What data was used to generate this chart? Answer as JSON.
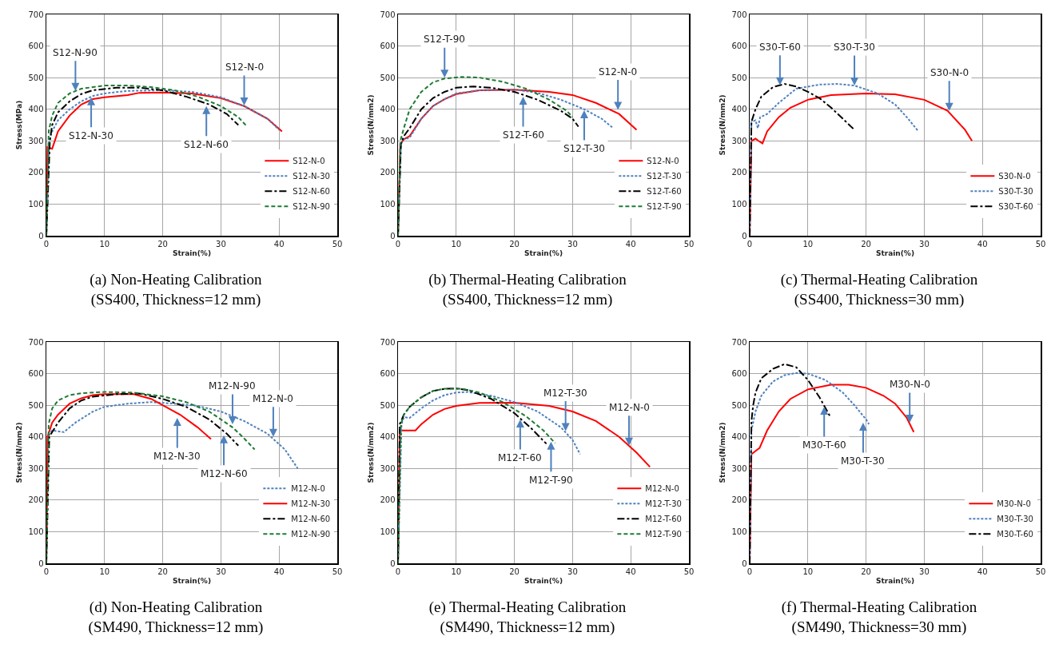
{
  "chart_data": [
    {
      "type": "line",
      "title": "(a)  Non-Heating Calibration\n(SS400,  Thickness=12  mm)",
      "xlabel": "Strain(%)",
      "ylabel": "Stress(MPa)",
      "xlim": [
        0,
        50
      ],
      "xticks": [
        0,
        10,
        20,
        30,
        40,
        50
      ],
      "ylim": [
        0,
        700
      ],
      "yticks": [
        0,
        100,
        200,
        300,
        400,
        500,
        600,
        700
      ],
      "grid": true,
      "legend": "bottom right",
      "series": [
        {
          "name": "S12-N-0",
          "color": "#ff0000",
          "line_style": "solid",
          "x": [
            0,
            0.2,
            1,
            2,
            4,
            6,
            8,
            10,
            14,
            16,
            20,
            25,
            30,
            34,
            38,
            40.5
          ],
          "values": [
            0,
            280,
            275,
            330,
            380,
            415,
            432,
            438,
            445,
            452,
            453,
            450,
            435,
            410,
            370,
            330
          ]
        },
        {
          "name": "S12-N-30",
          "color": "#4f81bd",
          "line_style": "dotted",
          "x": [
            0,
            0.5,
            1,
            2,
            4,
            6,
            8,
            10,
            14,
            20,
            25,
            30,
            34,
            38,
            40
          ],
          "values": [
            0,
            300,
            330,
            365,
            400,
            425,
            442,
            450,
            458,
            460,
            455,
            438,
            410,
            370,
            335
          ]
        },
        {
          "name": "S12-N-60",
          "color": "#000000",
          "line_style": "dashdot",
          "x": [
            0,
            0.6,
            1,
            2,
            4,
            6,
            8,
            12,
            16,
            20,
            24,
            28,
            31,
            33
          ],
          "values": [
            0,
            300,
            350,
            390,
            425,
            448,
            460,
            468,
            468,
            460,
            440,
            415,
            385,
            350
          ]
        },
        {
          "name": "S12-N-90",
          "color": "#1e7b34",
          "line_style": "dashed",
          "x": [
            0,
            0.4,
            1,
            2,
            4,
            6,
            10,
            14,
            18,
            22,
            26,
            30,
            33,
            34.5
          ],
          "values": [
            0,
            330,
            380,
            420,
            450,
            465,
            475,
            475,
            470,
            460,
            440,
            410,
            375,
            345
          ]
        }
      ],
      "annotations": [
        {
          "text": "S12-N-90",
          "x": 5,
          "y": 458
        },
        {
          "text": "S12-N-30",
          "x": 7.7,
          "y": 438
        },
        {
          "text": "S12-N-60",
          "x": 27.5,
          "y": 410
        },
        {
          "text": "S12-N-0",
          "x": 34,
          "y": 412
        }
      ]
    },
    {
      "type": "line",
      "title": "(b)  Thermal-Heating Calibration\n(SS400,  Thickness=12  mm)",
      "xlabel": "Strain(%)",
      "ylabel": "Stress(N/mm2)",
      "xlim": [
        0,
        50
      ],
      "xticks": [
        0,
        10,
        20,
        30,
        40,
        50
      ],
      "ylim": [
        0,
        700
      ],
      "yticks": [
        0,
        100,
        200,
        300,
        400,
        500,
        600,
        700
      ],
      "grid": true,
      "legend": "bottom right",
      "series": [
        {
          "name": "S12-N-0",
          "color": "#ff0000",
          "line_style": "solid",
          "x": [
            0,
            0.4,
            1,
            2,
            4,
            6,
            8,
            10,
            14,
            20,
            26,
            30,
            34,
            38,
            41
          ],
          "values": [
            0,
            290,
            305,
            315,
            370,
            410,
            432,
            448,
            460,
            462,
            455,
            445,
            420,
            385,
            335
          ]
        },
        {
          "name": "S12-T-30",
          "color": "#4f81bd",
          "line_style": "dotted",
          "x": [
            0,
            0.5,
            1,
            2,
            4,
            6,
            8,
            10,
            14,
            20,
            24,
            28,
            32,
            35,
            37
          ],
          "values": [
            0,
            290,
            305,
            310,
            370,
            410,
            432,
            450,
            460,
            462,
            452,
            430,
            400,
            370,
            340
          ]
        },
        {
          "name": "S12-T-60",
          "color": "#000000",
          "line_style": "dashdot",
          "x": [
            0,
            0.5,
            1,
            2,
            4,
            6,
            8,
            10,
            13,
            16,
            20,
            24,
            28,
            30,
            31
          ],
          "values": [
            0,
            290,
            315,
            340,
            400,
            435,
            455,
            468,
            472,
            468,
            455,
            430,
            395,
            370,
            345
          ]
        },
        {
          "name": "S12-T-90",
          "color": "#1e7b34",
          "line_style": "dashed",
          "x": [
            0,
            0.4,
            1,
            2,
            4,
            6,
            8,
            11,
            14,
            18,
            22,
            26,
            29,
            30
          ],
          "values": [
            0,
            300,
            340,
            400,
            455,
            485,
            497,
            502,
            500,
            487,
            465,
            430,
            395,
            375
          ]
        }
      ],
      "annotations": [
        {
          "text": "S12-T-90",
          "x": 8,
          "y": 500
        },
        {
          "text": "S12-N-0",
          "x": 37.8,
          "y": 398
        },
        {
          "text": "S12-T-60",
          "x": 21.5,
          "y": 440
        },
        {
          "text": "S12-T-30",
          "x": 32,
          "y": 397
        }
      ]
    },
    {
      "type": "line",
      "title": "(c)  Thermal-Heating Calibration\n(SS400,  Thickness=30  mm)",
      "xlabel": "Strain(%)",
      "ylabel": "Stress(N/mm2)",
      "xlim": [
        0,
        50
      ],
      "xticks": [
        0,
        10,
        20,
        30,
        40,
        50
      ],
      "ylim": [
        0,
        700
      ],
      "yticks": [
        0,
        100,
        200,
        300,
        400,
        500,
        600,
        700
      ],
      "grid": true,
      "legend": "bottom right",
      "series": [
        {
          "name": "S30-N-0",
          "color": "#ff0000",
          "line_style": "solid",
          "x": [
            0,
            0.3,
            1,
            1.5,
            2.2,
            3,
            5,
            7,
            10,
            14,
            20,
            25,
            30,
            34,
            37,
            38.2
          ],
          "values": [
            0,
            300,
            307,
            300,
            292,
            330,
            375,
            405,
            430,
            445,
            450,
            447,
            430,
            395,
            335,
            300
          ]
        },
        {
          "name": "S30-T-30",
          "color": "#4f81bd",
          "line_style": "dotted",
          "x": [
            0,
            0.3,
            1,
            1.4,
            1.8,
            3,
            5,
            8,
            12,
            15,
            18,
            22,
            25,
            27,
            29
          ],
          "values": [
            0,
            360,
            365,
            340,
            375,
            385,
            420,
            465,
            478,
            480,
            475,
            450,
            415,
            375,
            330
          ]
        },
        {
          "name": "S30-T-60",
          "color": "#000000",
          "line_style": "dashdot",
          "x": [
            0,
            0.3,
            1,
            2,
            4,
            6,
            8,
            10,
            12,
            14,
            16,
            18
          ],
          "values": [
            0,
            360,
            400,
            440,
            470,
            480,
            472,
            455,
            435,
            405,
            370,
            335
          ]
        }
      ],
      "annotations": [
        {
          "text": "S30-T-60",
          "x": 5.2,
          "y": 476
        },
        {
          "text": "S30-T-30",
          "x": 18,
          "y": 475
        },
        {
          "text": "S30-N-0",
          "x": 34.3,
          "y": 395
        }
      ]
    },
    {
      "type": "line",
      "title": "(d)  Non-Heating Calibration\n(SM490,  Thickness=12  mm)",
      "xlabel": "Strain(%)",
      "ylabel": "Stress(N/mm2)",
      "xlim": [
        0,
        50
      ],
      "xticks": [
        0,
        10,
        20,
        30,
        40,
        50
      ],
      "ylim": [
        0,
        700
      ],
      "yticks": [
        0,
        100,
        200,
        300,
        400,
        500,
        600,
        700
      ],
      "grid": true,
      "legend": "bottom right",
      "series": [
        {
          "name": "M12-N-0",
          "color": "#4f81bd",
          "line_style": "dotted",
          "x": [
            0,
            0.3,
            1,
            3,
            5,
            8,
            10,
            14,
            18,
            22,
            26,
            30,
            34,
            38,
            41,
            43.2
          ],
          "values": [
            0,
            400,
            420,
            415,
            445,
            480,
            495,
            505,
            510,
            505,
            498,
            480,
            450,
            410,
            360,
            300
          ]
        },
        {
          "name": "M12-N-30",
          "color": "#ff0000",
          "line_style": "solid",
          "x": [
            0,
            0.2,
            1,
            2,
            4,
            6,
            8,
            10,
            15,
            18,
            20,
            23,
            26,
            28.3
          ],
          "values": [
            0,
            400,
            445,
            470,
            505,
            522,
            532,
            535,
            535,
            520,
            500,
            470,
            430,
            393
          ]
        },
        {
          "name": "M12-N-60",
          "color": "#000000",
          "line_style": "dashdot",
          "x": [
            0,
            0.5,
            1,
            2,
            4,
            6,
            8,
            12,
            16,
            20,
            24,
            28,
            31,
            33
          ],
          "values": [
            0,
            400,
            415,
            445,
            490,
            515,
            527,
            535,
            537,
            520,
            495,
            455,
            410,
            372
          ]
        },
        {
          "name": "M12-N-90",
          "color": "#1e7b34",
          "line_style": "dashed",
          "x": [
            0,
            0.4,
            1,
            2,
            4,
            6,
            10,
            15,
            20,
            24,
            28,
            32,
            34,
            35.8
          ],
          "values": [
            0,
            440,
            490,
            515,
            532,
            538,
            542,
            540,
            528,
            510,
            480,
            430,
            395,
            360
          ]
        }
      ],
      "annotations": [
        {
          "text": "M12-N-90",
          "x": 32,
          "y": 440
        },
        {
          "text": "M12-N-0",
          "x": 39,
          "y": 400
        },
        {
          "text": "M12-N-30",
          "x": 22.5,
          "y": 460
        },
        {
          "text": "M12-N-60",
          "x": 30.5,
          "y": 405
        }
      ]
    },
    {
      "type": "line",
      "title": "(e)  Thermal-Heating Calibration\n(SM490,  Thickness=12  mm)",
      "xlabel": "Strain(%)",
      "ylabel": "Stress(N/mm2)",
      "xlim": [
        0,
        50
      ],
      "xticks": [
        0,
        10,
        20,
        30,
        40,
        50
      ],
      "ylim": [
        0,
        700
      ],
      "yticks": [
        0,
        100,
        200,
        300,
        400,
        500,
        600,
        700
      ],
      "grid": true,
      "legend": "bottom right",
      "series": [
        {
          "name": "M12-N-0",
          "color": "#ff0000",
          "line_style": "solid",
          "x": [
            0,
            0.3,
            1,
            3,
            4,
            6,
            8,
            10,
            14,
            20,
            26,
            30,
            34,
            38,
            41,
            43.3
          ],
          "values": [
            0,
            420,
            420,
            420,
            440,
            470,
            488,
            498,
            507,
            508,
            498,
            480,
            450,
            400,
            350,
            305
          ]
        },
        {
          "name": "M12-T-30",
          "color": "#4f81bd",
          "line_style": "dotted",
          "x": [
            0,
            0.6,
            1,
            2,
            4,
            6,
            8,
            10,
            12,
            16,
            20,
            24,
            28,
            30,
            31.3
          ],
          "values": [
            0,
            440,
            462,
            460,
            490,
            515,
            532,
            540,
            542,
            530,
            510,
            480,
            430,
            390,
            345
          ]
        },
        {
          "name": "M12-T-60",
          "color": "#000000",
          "line_style": "dashdot",
          "x": [
            0,
            0.3,
            1,
            2,
            4,
            6,
            8,
            10,
            12,
            16,
            20,
            23,
            25.5
          ],
          "values": [
            0,
            440,
            470,
            495,
            525,
            545,
            552,
            553,
            548,
            520,
            475,
            425,
            378
          ]
        },
        {
          "name": "M12-T-90",
          "color": "#1e7b34",
          "line_style": "dashed",
          "x": [
            0,
            0.5,
            1,
            2,
            4,
            6,
            8,
            11,
            14,
            18,
            22,
            25,
            27
          ],
          "values": [
            0,
            440,
            470,
            495,
            525,
            545,
            552,
            552,
            540,
            510,
            465,
            420,
            380
          ]
        }
      ],
      "annotations": [
        {
          "text": "M12-T-30",
          "x": 28.8,
          "y": 418
        },
        {
          "text": "M12-N-0",
          "x": 39.7,
          "y": 372
        },
        {
          "text": "M12-T-60",
          "x": 21,
          "y": 455
        },
        {
          "text": "M12-T-90",
          "x": 26.3,
          "y": 385
        }
      ]
    },
    {
      "type": "line",
      "title": "(f)  Thermal-Heating Calibration\n(SM490,  Thickness=30  mm)",
      "xlabel": "Strain(%)",
      "ylabel": "Stress(N/mm2)",
      "xlim": [
        0,
        50
      ],
      "xticks": [
        0,
        10,
        20,
        30,
        40,
        50
      ],
      "ylim": [
        0,
        700
      ],
      "yticks": [
        0,
        100,
        200,
        300,
        400,
        500,
        600,
        700
      ],
      "grid": true,
      "legend": "bottom right",
      "series": [
        {
          "name": "M30-N-0",
          "color": "#ff0000",
          "line_style": "solid",
          "x": [
            0,
            0.3,
            1,
            1.7,
            3,
            5,
            7,
            10,
            14,
            17,
            20,
            23,
            25,
            27,
            28.2
          ],
          "values": [
            0,
            345,
            355,
            365,
            420,
            480,
            520,
            550,
            565,
            565,
            555,
            530,
            505,
            460,
            415
          ]
        },
        {
          "name": "M30-T-30",
          "color": "#4f81bd",
          "line_style": "dotted",
          "x": [
            0,
            0.3,
            1,
            2,
            4,
            6,
            8,
            10,
            13,
            16,
            18,
            20,
            20.5
          ],
          "values": [
            0,
            420,
            480,
            530,
            575,
            595,
            602,
            600,
            580,
            540,
            500,
            455,
            440
          ]
        },
        {
          "name": "M30-T-60",
          "color": "#000000",
          "line_style": "dashdot",
          "x": [
            0,
            0.3,
            0.6,
            1,
            2,
            4,
            6,
            8,
            10,
            12,
            13.8
          ],
          "values": [
            0,
            450,
            500,
            540,
            585,
            615,
            630,
            620,
            580,
            525,
            465
          ]
        }
      ],
      "annotations": [
        {
          "text": "M30-N-0",
          "x": 27.5,
          "y": 445
        },
        {
          "text": "M30-T-60",
          "x": 12.8,
          "y": 495
        },
        {
          "text": "M30-T-30",
          "x": 19.5,
          "y": 445
        }
      ]
    }
  ]
}
